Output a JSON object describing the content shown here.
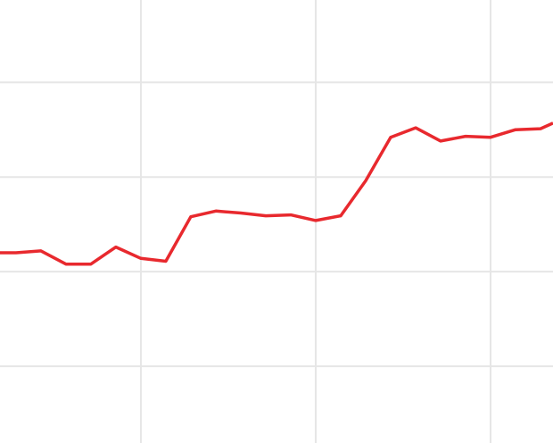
{
  "chart_data": {
    "type": "line",
    "title": "",
    "xlabel": "",
    "ylabel": "",
    "grid": true,
    "xlim": [
      -0.64,
      21.5
    ],
    "ylim": [
      -0.81,
      3.87
    ],
    "x_gridlines": [
      5,
      12,
      19
    ],
    "y_gridlines": [
      0,
      1,
      2,
      3
    ],
    "line_color": "#e8292e",
    "grid_color": "#e6e6e6",
    "series": [
      {
        "x": [
          -0.64,
          0,
          1,
          2,
          3,
          4,
          5,
          6,
          7,
          8,
          9,
          10,
          11,
          12,
          13,
          14,
          15,
          16,
          17,
          18,
          19,
          20,
          21,
          21.5
        ],
        "values": [
          1.2,
          1.2,
          1.22,
          1.08,
          1.08,
          1.26,
          1.14,
          1.11,
          1.58,
          1.64,
          1.62,
          1.59,
          1.6,
          1.54,
          1.59,
          1.96,
          2.42,
          2.52,
          2.38,
          2.43,
          2.42,
          2.5,
          2.51,
          2.57
        ]
      }
    ]
  }
}
